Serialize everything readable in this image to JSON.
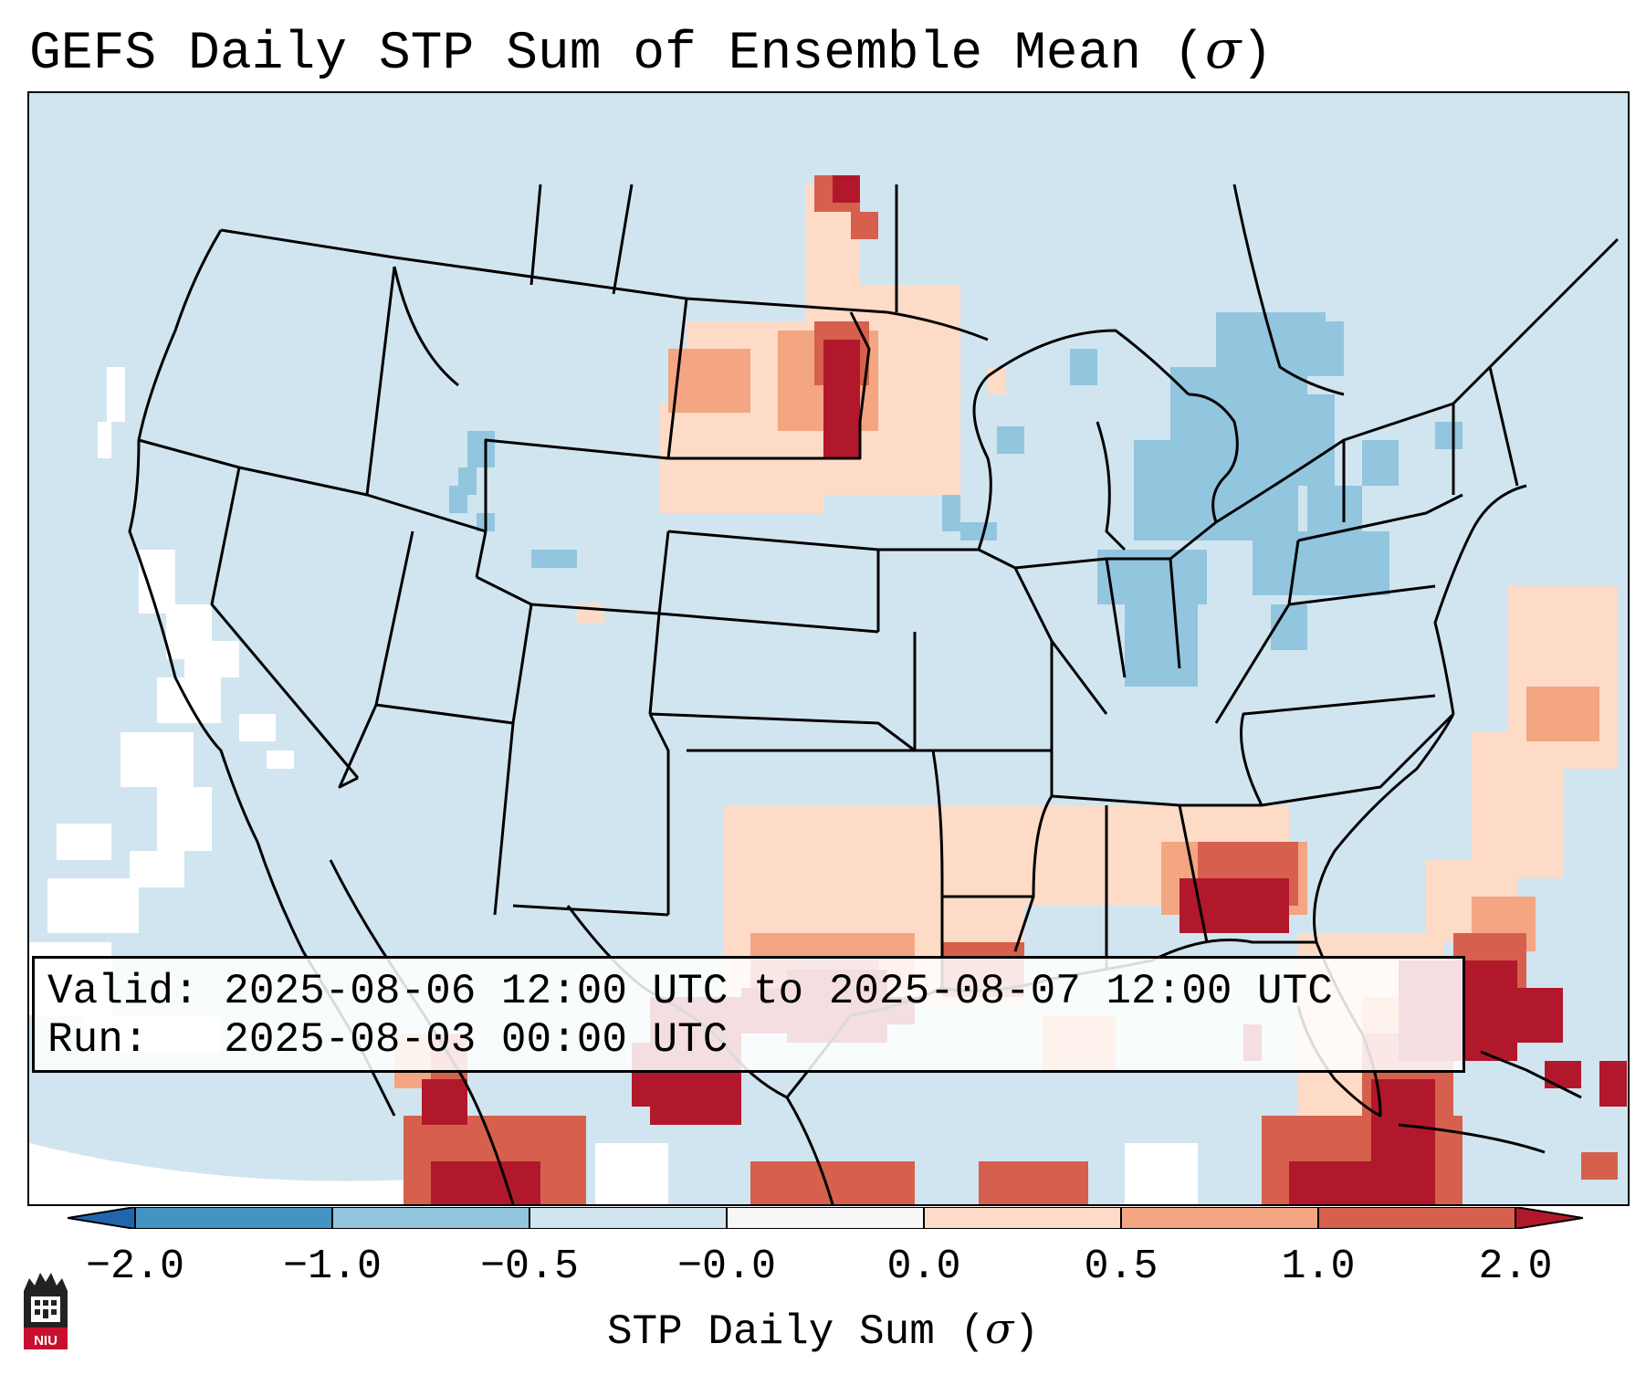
{
  "title": {
    "text": "GEFS Daily STP Sum of Ensemble Mean (",
    "symbol": "σ",
    "close": ")"
  },
  "info": {
    "valid_label": "Valid:",
    "valid_value": "2025-08-06 12:00 UTC to 2025-08-07 12:00 UTC",
    "run_label": "Run:",
    "run_value": "2025-08-03 00:00 UTC"
  },
  "colorbar": {
    "label": "STP Daily Sum (",
    "label_symbol": "σ",
    "label_close": ")",
    "ticks": [
      "−2.0",
      "−1.0",
      "−0.5",
      "−0.0",
      "0.0",
      "0.5",
      "1.0",
      "2.0"
    ],
    "colors": {
      "under": "#2166ac",
      "bin_1": "#4393c3",
      "bin_2": "#92c5de",
      "bin_3": "#d1e5f0",
      "bin_4": "#f7f7f7",
      "bin_5": "#fddbc7",
      "bin_6": "#f4a582",
      "bin_7": "#d6604d",
      "over": "#b2182b"
    }
  },
  "map": {
    "background_color": "#d1e5f0",
    "regions": [
      {
        "name": "northern-plains-positive",
        "level": "high"
      },
      {
        "name": "texas-louisiana-positive",
        "level": "high"
      },
      {
        "name": "georgia-positive",
        "level": "high"
      },
      {
        "name": "florida-positive",
        "level": "high"
      },
      {
        "name": "northeast-negative",
        "level": "low"
      },
      {
        "name": "west-coast-near-zero",
        "level": "neutral"
      }
    ]
  },
  "logo": {
    "text": "NIU"
  }
}
